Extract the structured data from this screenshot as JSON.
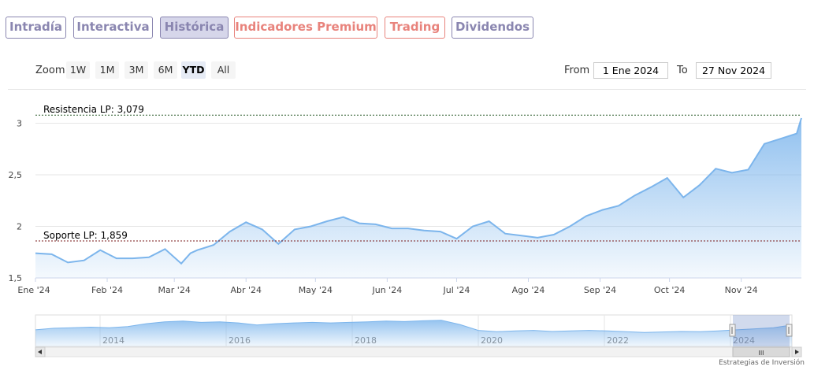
{
  "tabs": [
    {
      "label": "Intradía",
      "color": "#8a86b0",
      "active": false
    },
    {
      "label": "Interactiva",
      "color": "#8a86b0",
      "active": false
    },
    {
      "label": "Histórica",
      "color": "#8a86b0",
      "active": true
    },
    {
      "label": "Indicadores Premium",
      "color": "#e8837c",
      "active": false
    },
    {
      "label": "Trading",
      "color": "#e8837c",
      "active": false
    },
    {
      "label": "Dividendos",
      "color": "#8a86b0",
      "active": false
    }
  ],
  "zoom": {
    "label": "Zoom",
    "buttons": [
      "1W",
      "1M",
      "3M",
      "6M",
      "YTD",
      "All"
    ],
    "selected": "YTD"
  },
  "range": {
    "from_label": "From",
    "from_value": "1 Ene 2024",
    "to_label": "To",
    "to_value": "27 Nov 2024"
  },
  "chart_data": {
    "type": "area",
    "x_tick_labels": [
      "Ene '24",
      "Feb '24",
      "Mar '24",
      "Abr '24",
      "May '24",
      "Jun '24",
      "Jul '24",
      "Ago '24",
      "Sep '24",
      "Oct '24",
      "Nov '24"
    ],
    "y_tick_labels": [
      "1,5",
      "2",
      "2,5",
      "3"
    ],
    "ylim": [
      1.5,
      3.05
    ],
    "series_color": "#7cb5ec",
    "x": [
      "2024-01-01",
      "2024-01-08",
      "2024-01-15",
      "2024-01-22",
      "2024-01-29",
      "2024-02-05",
      "2024-02-12",
      "2024-02-19",
      "2024-02-26",
      "2024-03-04",
      "2024-03-08",
      "2024-03-11",
      "2024-03-18",
      "2024-03-25",
      "2024-04-01",
      "2024-04-08",
      "2024-04-15",
      "2024-04-22",
      "2024-04-29",
      "2024-05-06",
      "2024-05-13",
      "2024-05-20",
      "2024-05-27",
      "2024-06-03",
      "2024-06-10",
      "2024-06-17",
      "2024-06-24",
      "2024-07-01",
      "2024-07-08",
      "2024-07-15",
      "2024-07-22",
      "2024-07-29",
      "2024-08-05",
      "2024-08-12",
      "2024-08-19",
      "2024-08-26",
      "2024-09-02",
      "2024-09-09",
      "2024-09-16",
      "2024-09-23",
      "2024-09-30",
      "2024-10-07",
      "2024-10-14",
      "2024-10-21",
      "2024-10-28",
      "2024-11-04",
      "2024-11-11",
      "2024-11-18",
      "2024-11-25",
      "2024-11-27"
    ],
    "values": [
      1.74,
      1.73,
      1.65,
      1.67,
      1.77,
      1.69,
      1.69,
      1.7,
      1.78,
      1.64,
      1.74,
      1.77,
      1.82,
      1.95,
      2.04,
      1.97,
      1.83,
      1.97,
      2.0,
      2.05,
      2.09,
      2.03,
      2.02,
      1.98,
      1.98,
      1.96,
      1.95,
      1.88,
      2.0,
      2.05,
      1.93,
      1.91,
      1.89,
      1.92,
      2.0,
      2.1,
      2.16,
      2.2,
      2.3,
      2.38,
      2.47,
      2.28,
      2.4,
      2.56,
      2.52,
      2.55,
      2.8,
      2.85,
      2.9,
      3.05
    ],
    "plot_lines": [
      {
        "label": "Resistencia LP: 3,079",
        "value": 3.079,
        "color": "#2e5e2e"
      },
      {
        "label": "Soporte LP: 1,859",
        "value": 1.859,
        "color": "#7a1a1a"
      }
    ],
    "navigator": {
      "x_tick_labels": [
        "2014",
        "2016",
        "2018",
        "2020",
        "2022",
        "2024"
      ],
      "values": [
        0.62,
        0.68,
        0.7,
        0.72,
        0.7,
        0.74,
        0.85,
        0.92,
        0.95,
        0.9,
        0.92,
        0.88,
        0.8,
        0.85,
        0.88,
        0.9,
        0.88,
        0.9,
        0.92,
        0.95,
        0.93,
        0.96,
        0.98,
        0.82,
        0.6,
        0.55,
        0.58,
        0.6,
        0.56,
        0.58,
        0.6,
        0.58,
        0.55,
        0.52,
        0.54,
        0.56,
        0.55,
        0.58,
        0.62,
        0.66,
        0.7,
        0.8
      ]
    },
    "scrollbar_grip": "III"
  },
  "credit": "Estrategias de Inversión"
}
